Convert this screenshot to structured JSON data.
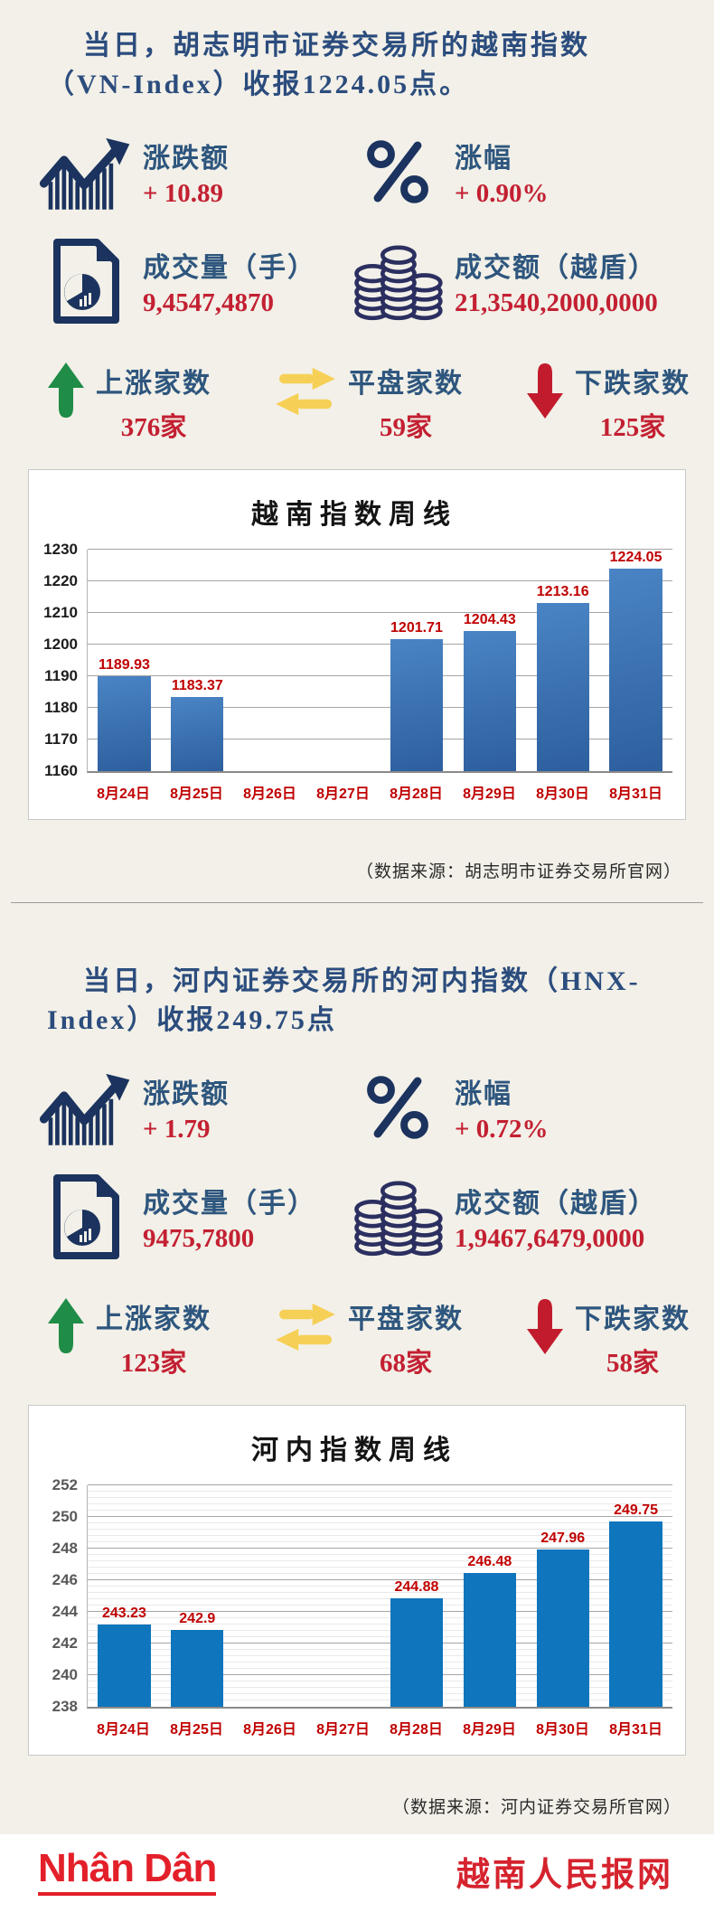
{
  "colors": {
    "background": "#f2f0e8",
    "title_blue": "#2b4c7d",
    "label_blue": "#2e567e",
    "value_red": "#c32032",
    "chart_text_red": "#c00000",
    "icon_navy": "#1b335e",
    "up_green": "#1f8c47",
    "flat_yellow": "#f6d056",
    "down_red": "#c21b2e",
    "bar_gradient_top": "#4a84c4",
    "bar_gradient_bottom": "#2d5f9e",
    "bar_flat_blue": "#0f75bc",
    "footer_red": "#e3202a"
  },
  "sections": [
    {
      "title": "当日，胡志明市证券交易所的越南指数（VN-Index）收报1224.05点。",
      "stats": [
        {
          "icon": "trend-up-chart-icon",
          "label": "涨跌额",
          "value": "+ 10.89"
        },
        {
          "icon": "percent-icon",
          "label": "涨幅",
          "value": "+ 0.90%"
        },
        {
          "icon": "document-pie-icon",
          "label": "成交量（手）",
          "value": "9,4547,4870"
        },
        {
          "icon": "coin-stacks-icon",
          "label": "成交额（越盾）",
          "value": "21,3540,2000,0000"
        }
      ],
      "counts": [
        {
          "icon": "up-arrow-icon",
          "label": "上涨家数",
          "value": "376家"
        },
        {
          "icon": "swap-arrows-icon",
          "label": "平盘家数",
          "value": "59家"
        },
        {
          "icon": "down-arrow-icon",
          "label": "下跌家数",
          "value": "125家"
        }
      ],
      "source": "（数据来源：胡志明市证券交易所官网）"
    },
    {
      "title": "当日，河内证券交易所的河内指数（HNX-Index）收报249.75点",
      "stats": [
        {
          "icon": "trend-up-chart-icon",
          "label": "涨跌额",
          "value": "+ 1.79"
        },
        {
          "icon": "percent-icon",
          "label": "涨幅",
          "value": "+ 0.72%"
        },
        {
          "icon": "document-pie-icon",
          "label": "成交量（手）",
          "value": "9475,7800"
        },
        {
          "icon": "coin-stacks-icon",
          "label": "成交额（越盾）",
          "value": "1,9467,6479,0000"
        }
      ],
      "counts": [
        {
          "icon": "up-arrow-icon",
          "label": "上涨家数",
          "value": "123家"
        },
        {
          "icon": "swap-arrows-icon",
          "label": "平盘家数",
          "value": "68家"
        },
        {
          "icon": "down-arrow-icon",
          "label": "下跌家数",
          "value": "58家"
        }
      ],
      "source": "（数据来源：河内证券交易所官网）"
    }
  ],
  "chart_data": [
    {
      "type": "bar",
      "title": "越南指数周线",
      "categories": [
        "8月24日",
        "8月25日",
        "8月26日",
        "8月27日",
        "8月28日",
        "8月29日",
        "8月30日",
        "8月31日"
      ],
      "values": [
        1189.93,
        1183.37,
        null,
        null,
        1201.71,
        1204.43,
        1213.16,
        1224.05
      ],
      "labels": [
        "1189.93",
        "1183.37",
        null,
        null,
        "1201.71",
        "1204.43",
        "1213.16",
        "1224.05"
      ],
      "xlabel": "",
      "ylabel": "",
      "ylim": [
        1160,
        1230
      ],
      "ytick_step": 10,
      "grid": true,
      "legend": false,
      "bar_color_top": "#4a84c4",
      "bar_color_bottom": "#2d5f9e"
    },
    {
      "type": "bar",
      "title": "河内指数周线",
      "categories": [
        "8月24日",
        "8月25日",
        "8月26日",
        "8月27日",
        "8月28日",
        "8月29日",
        "8月30日",
        "8月31日"
      ],
      "values": [
        243.23,
        242.9,
        null,
        null,
        244.88,
        246.48,
        247.96,
        249.75
      ],
      "labels": [
        "243.23",
        "242.9",
        null,
        null,
        "244.88",
        "246.48",
        "247.96",
        "249.75"
      ],
      "xlabel": "",
      "ylabel": "",
      "ylim": [
        238,
        252
      ],
      "ytick_step": 2,
      "minor_tick_step": 0.4,
      "grid": true,
      "legend": false,
      "bar_color": "#0f75bc"
    }
  ],
  "footer": {
    "logo_text": "Nhân Dân",
    "site_name": "越南人民报网"
  }
}
